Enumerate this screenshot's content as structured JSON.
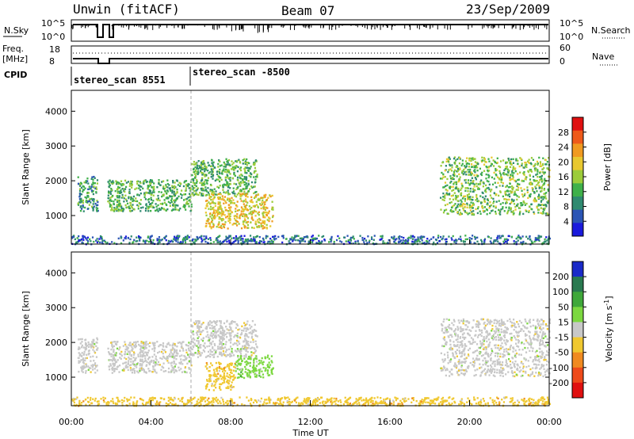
{
  "header": {
    "title": "Unwin (fitACF)",
    "beam": "Beam 07",
    "date": "23/Sep/2009"
  },
  "top_panels": {
    "nsky_label": "N.Sky",
    "nsky_ticks": [
      "10^5",
      "10^0"
    ],
    "nsearch_label": "N.Search",
    "nsearch_ticks": [
      "10^5",
      "10^0"
    ],
    "freq_label_1": "Freq.",
    "freq_label_2": "[MHz]",
    "freq_ticks": [
      "18",
      "8"
    ],
    "nave_label": "Nave",
    "nave_ticks": [
      "60",
      "0"
    ],
    "cpid_label": "CPID",
    "cpid_segments": [
      {
        "name": "stereo_scan 8551",
        "start_hour": 0,
        "end_hour": 6.0
      },
      {
        "name": "stereo_scan -8500",
        "start_hour": 6.0,
        "end_hour": 24
      }
    ]
  },
  "chart_data": [
    {
      "type": "heatmap",
      "name": "power",
      "ylabel": "Slant Range [km]",
      "xlabel": "",
      "xlim": [
        0,
        24
      ],
      "ylim": [
        180,
        4600
      ],
      "yticks": [
        "1000",
        "2000",
        "3000",
        "4000"
      ],
      "colorbar": {
        "label": "Power [dB]",
        "ticks": [
          "4",
          "8",
          "12",
          "16",
          "20",
          "24",
          "28"
        ],
        "range": [
          0,
          32
        ],
        "colors": [
          "#1a1adc",
          "#2b55b5",
          "#2f8a70",
          "#3fb04a",
          "#9ccc3a",
          "#e8c830",
          "#f09a20",
          "#ee5a1a",
          "#e01010"
        ]
      },
      "echo_regions": [
        {
          "t0": 0.3,
          "t1": 1.3,
          "r0": 1150,
          "r1": 2150,
          "level": 10
        },
        {
          "t0": 1.8,
          "t1": 6.0,
          "r0": 1150,
          "r1": 2050,
          "level": 12
        },
        {
          "t0": 6.0,
          "t1": 9.3,
          "r0": 1600,
          "r1": 2650,
          "level": 12
        },
        {
          "t0": 6.7,
          "t1": 10.1,
          "r0": 650,
          "r1": 1650,
          "level": 20
        },
        {
          "t0": 18.5,
          "t1": 24,
          "r0": 1050,
          "r1": 2700,
          "level": 14
        },
        {
          "t0": 0,
          "t1": 24,
          "r0": 200,
          "r1": 450,
          "level": 6
        }
      ]
    },
    {
      "type": "heatmap",
      "name": "velocity",
      "ylabel": "Slant Range [km]",
      "xlabel": "Time UT",
      "xlim": [
        0,
        24
      ],
      "ylim": [
        180,
        4600
      ],
      "yticks": [
        "1000",
        "2000",
        "3000",
        "4000"
      ],
      "xticks": [
        "00:00",
        "04:00",
        "08:00",
        "12:00",
        "16:00",
        "20:00",
        "00:00"
      ],
      "colorbar": {
        "label": "Velocity [m s^-1]",
        "ticks": [
          "200",
          "100",
          "50",
          "15",
          "-15",
          "-50",
          "-100",
          "-200"
        ],
        "colors": [
          "#1a2ac8",
          "#2a7a50",
          "#3fa83a",
          "#7cd840",
          "#c8c8c8",
          "#f0c830",
          "#f08a20",
          "#ee4a1a",
          "#e01010"
        ]
      },
      "echo_regions": [
        {
          "t0": 0.3,
          "t1": 1.3,
          "r0": 1150,
          "r1": 2150,
          "color_index": 4
        },
        {
          "t0": 1.8,
          "t1": 6.0,
          "r0": 1150,
          "r1": 2050,
          "color_index": 4
        },
        {
          "t0": 6.0,
          "t1": 9.3,
          "r0": 1600,
          "r1": 2650,
          "color_index": 4
        },
        {
          "t0": 6.7,
          "t1": 8.2,
          "r0": 650,
          "r1": 1450,
          "color_index": 5
        },
        {
          "t0": 8.2,
          "t1": 10.1,
          "r0": 1000,
          "r1": 1650,
          "color_index": 3
        },
        {
          "t0": 18.5,
          "t1": 24,
          "r0": 1050,
          "r1": 2700,
          "color_index": 4
        },
        {
          "t0": 0,
          "t1": 24,
          "r0": 200,
          "r1": 450,
          "color_index": 5
        }
      ]
    }
  ]
}
